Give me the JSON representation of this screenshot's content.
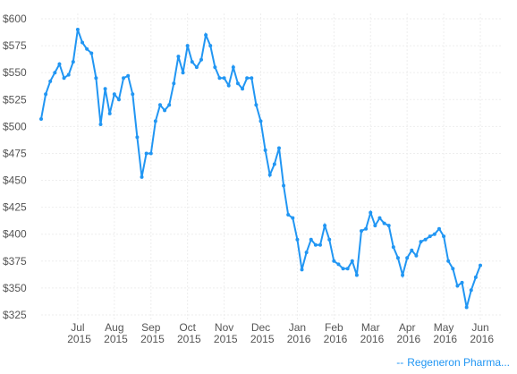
{
  "chart_data": {
    "type": "line",
    "categories": [
      null,
      null,
      null,
      null,
      null,
      null,
      null,
      null,
      "Jul 2015",
      null,
      null,
      null,
      null,
      null,
      null,
      null,
      "Aug 2015",
      null,
      null,
      null,
      null,
      null,
      null,
      null,
      "Sep 2015",
      null,
      null,
      null,
      null,
      null,
      null,
      null,
      "Oct 2015",
      null,
      null,
      null,
      null,
      null,
      null,
      null,
      "Nov 2015",
      null,
      null,
      null,
      null,
      null,
      null,
      null,
      "Dec 2015",
      null,
      null,
      null,
      null,
      null,
      null,
      null,
      "Jan 2016",
      null,
      null,
      null,
      null,
      null,
      null,
      null,
      "Feb 2016",
      null,
      null,
      null,
      null,
      null,
      null,
      null,
      "Mar 2016",
      null,
      null,
      null,
      null,
      null,
      null,
      null,
      "Apr 2016",
      null,
      null,
      null,
      null,
      null,
      null,
      null,
      "May 2016",
      null,
      null,
      null,
      null,
      null,
      null,
      null,
      "Jun 2016"
    ],
    "series": [
      {
        "name": "Regeneron Pharma...",
        "color": "#2196f3",
        "values": [
          507,
          530,
          542,
          550,
          558,
          545,
          548,
          560,
          590,
          578,
          572,
          568,
          545,
          502,
          535,
          512,
          530,
          525,
          545,
          547,
          530,
          490,
          453,
          475,
          475,
          505,
          520,
          515,
          520,
          540,
          565,
          550,
          575,
          560,
          555,
          562,
          585,
          575,
          555,
          545,
          545,
          538,
          555,
          540,
          535,
          545,
          545,
          520,
          505,
          478,
          455,
          465,
          480,
          445,
          418,
          415,
          395,
          367,
          383,
          395,
          390,
          390,
          408,
          395,
          375,
          372,
          368,
          368,
          375,
          362,
          403,
          405,
          420,
          408,
          415,
          410,
          408,
          388,
          378,
          362,
          378,
          385,
          380,
          393,
          395,
          398,
          400,
          405,
          398,
          375,
          368,
          352,
          355,
          332,
          348,
          360,
          371
        ]
      }
    ],
    "ylim": [
      320,
      605
    ],
    "yticks": [
      {
        "value": 325,
        "label": "$325"
      },
      {
        "value": 350,
        "label": "$350"
      },
      {
        "value": 375,
        "label": "$375"
      },
      {
        "value": 400,
        "label": "$400"
      },
      {
        "value": 425,
        "label": "$425"
      },
      {
        "value": 450,
        "label": "$450"
      },
      {
        "value": 475,
        "label": "$475"
      },
      {
        "value": 500,
        "label": "$500"
      },
      {
        "value": 525,
        "label": "$525"
      },
      {
        "value": 550,
        "label": "$550"
      },
      {
        "value": 575,
        "label": "$575"
      },
      {
        "value": 600,
        "label": "$600"
      }
    ],
    "grid": true
  }
}
